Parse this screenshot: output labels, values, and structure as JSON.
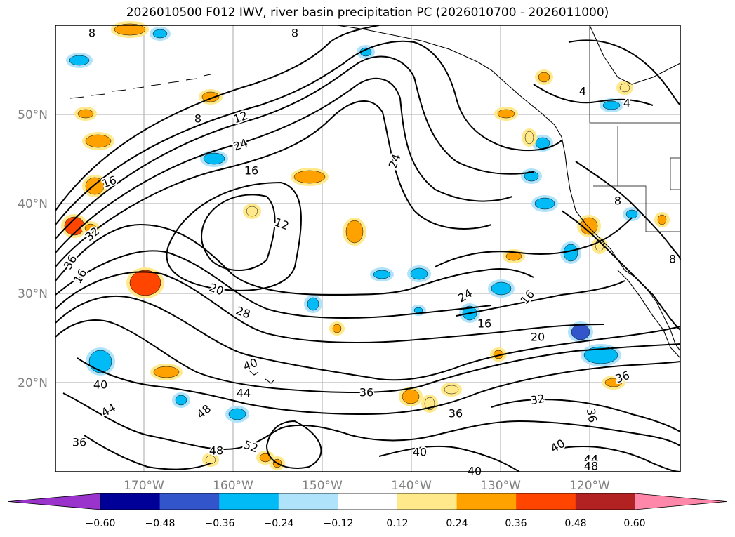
{
  "title": "2026010500 F012 IWV, river basin precipitation PC (2026010700 - 2026011000)",
  "axes": {
    "lat_ticks": [
      "50°N",
      "40°N",
      "30°N",
      "20°N"
    ],
    "lon_ticks": [
      "170°W",
      "160°W",
      "150°W",
      "140°W",
      "130°W",
      "120°W"
    ]
  },
  "colorbar": {
    "colors": [
      "#9933cc",
      "#000099",
      "#3355cc",
      "#00bbf5",
      "#aee3fb",
      "#ffffff",
      "#ffe98a",
      "#ffa200",
      "#ff4500",
      "#b22222",
      "#ff88aa"
    ],
    "tick_labels": [
      "−0.60",
      "−0.48",
      "−0.36",
      "−0.24",
      "−0.12",
      "0.12",
      "0.24",
      "0.36",
      "0.48",
      "0.60"
    ]
  },
  "contour_labels": [
    {
      "text": "8"
    },
    {
      "text": "12"
    },
    {
      "text": "8"
    },
    {
      "text": "24"
    },
    {
      "text": "16"
    },
    {
      "text": "16"
    },
    {
      "text": "12"
    },
    {
      "text": "32"
    },
    {
      "text": "36"
    },
    {
      "text": "16"
    },
    {
      "text": "24"
    },
    {
      "text": "4"
    },
    {
      "text": "4"
    },
    {
      "text": "8"
    },
    {
      "text": "20"
    },
    {
      "text": "28"
    },
    {
      "text": "24"
    },
    {
      "text": "16"
    },
    {
      "text": "16"
    },
    {
      "text": "20"
    },
    {
      "text": "40"
    },
    {
      "text": "44"
    },
    {
      "text": "40"
    },
    {
      "text": "44"
    },
    {
      "text": "48"
    },
    {
      "text": "36"
    },
    {
      "text": "48"
    },
    {
      "text": "52"
    },
    {
      "text": "36"
    },
    {
      "text": "36"
    },
    {
      "text": "32"
    },
    {
      "text": "36"
    },
    {
      "text": "36"
    },
    {
      "text": "40"
    },
    {
      "text": "40"
    },
    {
      "text": "40"
    },
    {
      "text": "44"
    },
    {
      "text": "48"
    },
    {
      "text": "8"
    },
    {
      "text": "8"
    },
    {
      "text": "8"
    }
  ],
  "anomaly_blobs": [
    {
      "value": 0.36
    },
    {
      "value": -0.36
    },
    {
      "value": 0.36
    },
    {
      "value": 0.36
    },
    {
      "value": -0.36
    },
    {
      "value": 0.36
    },
    {
      "value": 0.48
    },
    {
      "value": 0.36
    },
    {
      "value": 0.48
    },
    {
      "value": -0.24
    },
    {
      "value": 0.36
    },
    {
      "value": -0.36
    },
    {
      "value": 0.36
    },
    {
      "value": 0.24
    },
    {
      "value": -0.36
    },
    {
      "value": -0.36
    },
    {
      "value": -0.48
    },
    {
      "value": -0.36
    },
    {
      "value": 0.36
    },
    {
      "value": 0.24
    },
    {
      "value": -0.24
    },
    {
      "value": 0.36
    },
    {
      "value": -0.36
    },
    {
      "value": 0.36
    },
    {
      "value": -0.24
    },
    {
      "value": 0.36
    },
    {
      "value": -0.36
    },
    {
      "value": 0.36
    },
    {
      "value": -0.36
    },
    {
      "value": 0.36
    },
    {
      "value": -0.24
    },
    {
      "value": 0.36
    },
    {
      "value": 0.24
    },
    {
      "value": -0.36
    },
    {
      "value": 0.36
    },
    {
      "value": 0.24
    },
    {
      "value": -0.36
    },
    {
      "value": 0.24
    },
    {
      "value": -0.24
    },
    {
      "value": 0.36
    },
    {
      "value": -0.36
    },
    {
      "value": 0.36
    },
    {
      "value": 0.24
    },
    {
      "value": -0.36
    },
    {
      "value": 0.24
    },
    {
      "value": 0.36
    },
    {
      "value": -0.36
    },
    {
      "value": 0.36
    },
    {
      "value": -0.24
    },
    {
      "value": 0.36
    }
  ]
}
